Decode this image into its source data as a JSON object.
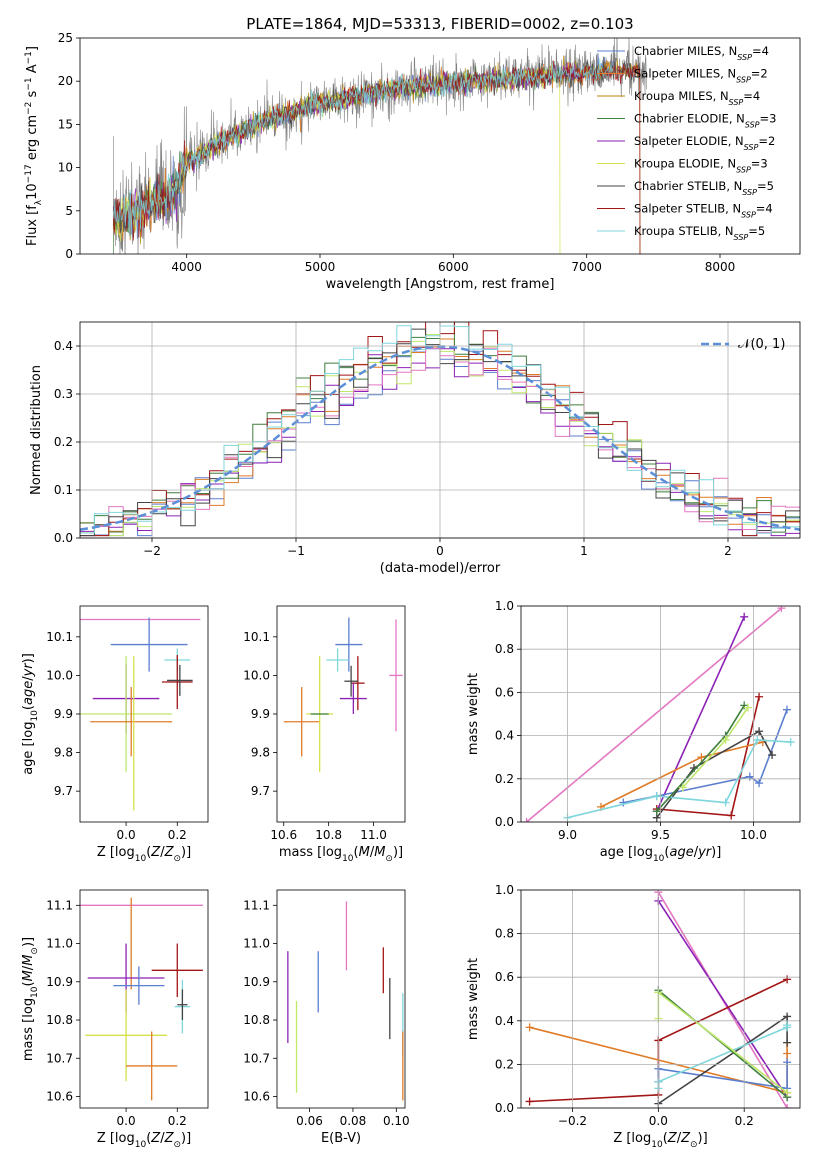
{
  "colors": {
    "Chabrier MILES": "#5b7fcf",
    "Salpeter MILES": "#e07b27",
    "Kroupa MILES": "#b8860b",
    "Chabrier ELODIE": "#3f7f3f",
    "Salpeter ELODIE": "#8b22b5",
    "Kroupa ELODIE": "#d7e04a",
    "Chabrier STELIB": "#444444",
    "Salpeter STELIB": "#a31515",
    "Kroupa STELIB": "#7fd6dc",
    "data": "#7f7f7f",
    "pink": "#e377c2",
    "green_light": "#bfe86a",
    "gauss": "#5b8fd8"
  },
  "chart_data": [
    {
      "id": "spectrum",
      "type": "line",
      "title": "PLATE=1864, MJD=53313, FIBERID=0002, z=0.103",
      "xlabel": "wavelength [Angstrom, rest frame]",
      "ylabel": "Flux [fλ10⁻¹⁷ erg cm⁻² s⁻¹ A⁻¹]",
      "xlim": [
        3200,
        8600
      ],
      "ylim": [
        0,
        25
      ],
      "xticks": [
        4000,
        5000,
        6000,
        7000,
        8000
      ],
      "yticks": [
        0,
        5,
        10,
        15,
        20,
        25
      ],
      "legend_loc": "upper right",
      "continuum_x": [
        3450,
        3700,
        3900,
        4000,
        4200,
        4400,
        4600,
        4800,
        5000,
        5200,
        5400,
        5600,
        5800,
        6000,
        6200,
        6400,
        6600,
        6800,
        7000,
        7200,
        7400
      ],
      "continuum_y": [
        4.0,
        5.5,
        7.0,
        10.5,
        12.5,
        14.0,
        15.5,
        16.5,
        17.5,
        18.0,
        18.7,
        19.3,
        19.5,
        19.8,
        20.0,
        20.3,
        20.6,
        20.8,
        21.0,
        21.2,
        21.3
      ],
      "series": [
        {
          "name": "Chabrier MILES, N_SSP=4",
          "label": "Chabrier MILES, N",
          "sub": "SSP",
          "val": "=4"
        },
        {
          "name": "Salpeter MILES, N_SSP=2",
          "label": "Salpeter MILES, N",
          "sub": "SSP",
          "val": "=2"
        },
        {
          "name": "Kroupa MILES, N_SSP=4",
          "label": "Kroupa MILES, N",
          "sub": "SSP",
          "val": "=4"
        },
        {
          "name": "Chabrier ELODIE, N_SSP=3",
          "label": "Chabrier ELODIE, N",
          "sub": "SSP",
          "val": "=3"
        },
        {
          "name": "Salpeter ELODIE, N_SSP=2",
          "label": "Salpeter ELODIE, N",
          "sub": "SSP",
          "val": "=2"
        },
        {
          "name": "Kroupa ELODIE, N_SSP=3",
          "label": "Kroupa ELODIE, N",
          "sub": "SSP",
          "val": "=3"
        },
        {
          "name": "Chabrier STELIB, N_SSP=5",
          "label": "Chabrier STELIB, N",
          "sub": "SSP",
          "val": "=5"
        },
        {
          "name": "Salpeter STELIB, N_SSP=4",
          "label": "Salpeter STELIB, N",
          "sub": "SSP",
          "val": "=4"
        },
        {
          "name": "Kroupa STELIB, N_SSP=5",
          "label": "Kroupa STELIB, N",
          "sub": "SSP",
          "val": "=5"
        }
      ]
    },
    {
      "id": "residuals",
      "type": "histogram",
      "xlabel": "(data-model)/error",
      "ylabel": "Normed distribution",
      "xlim": [
        -2.5,
        2.5
      ],
      "ylim": [
        0,
        0.45
      ],
      "xticks": [
        -2,
        -1,
        0,
        1,
        2
      ],
      "yticks": [
        0.0,
        0.1,
        0.2,
        0.3,
        0.4
      ],
      "grid": true,
      "legend": "𝒩(0, 1)",
      "gaussian": {
        "mu": 0,
        "sigma": 1
      }
    },
    {
      "id": "age-vs-Z",
      "type": "errorbar",
      "xlabel": "Z [log₁₀(Z/Z⊙)]",
      "ylabel": "age  [log₁₀(age/yr)]",
      "xlim": [
        -0.18,
        0.32
      ],
      "ylim": [
        9.62,
        10.18
      ],
      "xticks": [
        0.0,
        0.2
      ],
      "yticks": [
        9.7,
        9.8,
        9.9,
        10.0,
        10.1
      ],
      "points": [
        {
          "c": "pink",
          "x": 0.05,
          "xe": 0.24,
          "y": 10.145,
          "ye": 0.0
        },
        {
          "c": "Chabrier MILES",
          "x": 0.09,
          "xe": 0.15,
          "y": 10.08,
          "ye": 0.07
        },
        {
          "c": "Kroupa STELIB",
          "x": 0.2,
          "xe": 0.05,
          "y": 10.04,
          "ye": 0.03
        },
        {
          "c": "Salpeter STELIB",
          "x": 0.2,
          "xe": 0.06,
          "y": 9.983,
          "ye": 0.07
        },
        {
          "c": "Chabrier STELIB",
          "x": 0.21,
          "xe": 0.05,
          "y": 9.987,
          "ye": 0.04
        },
        {
          "c": "Salpeter ELODIE",
          "x": 0.0,
          "xe": 0.13,
          "y": 9.94,
          "ye": 0.09
        },
        {
          "c": "green_light",
          "x": 0.0,
          "xe": 0.18,
          "y": 9.9,
          "ye": 0.15
        },
        {
          "c": "Salpeter MILES",
          "x": 0.02,
          "xe": 0.16,
          "y": 9.88,
          "ye": 0.09
        },
        {
          "c": "Kroupa ELODIE",
          "x": 0.03,
          "xe": 0.0,
          "y": 9.85,
          "ye": 0.2
        }
      ]
    },
    {
      "id": "age-vs-mass",
      "type": "errorbar",
      "xlabel": "mass [log₁₀(M/M⊙)]",
      "xlim": [
        10.57,
        11.14
      ],
      "ylim": [
        9.62,
        10.18
      ],
      "xticks": [
        10.6,
        10.8,
        11.0
      ],
      "yticks": [
        9.7,
        9.8,
        9.9,
        10.0,
        10.1
      ],
      "points": [
        {
          "c": "pink",
          "x": 11.1,
          "xe": 0.03,
          "y": 10.0,
          "ye": 0.145
        },
        {
          "c": "Chabrier MILES",
          "x": 10.89,
          "xe": 0.06,
          "y": 10.08,
          "ye": 0.07
        },
        {
          "c": "Kroupa STELIB",
          "x": 10.84,
          "xe": 0.05,
          "y": 10.04,
          "ye": 0.03
        },
        {
          "c": "Salpeter STELIB",
          "x": 10.93,
          "xe": 0.03,
          "y": 9.98,
          "ye": 0.07
        },
        {
          "c": "Chabrier STELIB",
          "x": 10.9,
          "xe": 0.03,
          "y": 9.985,
          "ye": 0.04
        },
        {
          "c": "Salpeter ELODIE",
          "x": 10.91,
          "xe": 0.06,
          "y": 9.94,
          "ye": 0.04
        },
        {
          "c": "Salpeter MILES",
          "x": 10.68,
          "xe": 0.08,
          "y": 9.88,
          "ye": 0.09
        },
        {
          "c": "Kroupa ELODIE",
          "x": 10.76,
          "xe": 0.06,
          "y": 9.9,
          "ye": 0.15
        },
        {
          "c": "Chabrier ELODIE",
          "x": 10.76,
          "xe": 0.04,
          "y": 9.9,
          "ye": 0.0
        }
      ]
    },
    {
      "id": "weight-vs-age",
      "type": "line",
      "xlabel": "age  [log₁₀(age/yr)]",
      "ylabel": "mass weight",
      "xlim": [
        8.75,
        10.25
      ],
      "ylim": [
        0,
        1
      ],
      "xticks": [
        9.0,
        9.5,
        10.0
      ],
      "yticks": [
        0.0,
        0.2,
        0.4,
        0.6,
        0.8,
        1.0
      ],
      "grid": true,
      "series": [
        {
          "c": "pink",
          "x": [
            8.78,
            10.15
          ],
          "y": [
            0.0,
            0.99
          ]
        },
        {
          "c": "Salpeter ELODIE",
          "x": [
            9.48,
            9.95
          ],
          "y": [
            0.05,
            0.95
          ]
        },
        {
          "c": "Salpeter STELIB",
          "x": [
            9.48,
            9.88,
            10.03
          ],
          "y": [
            0.06,
            0.03,
            0.58
          ]
        },
        {
          "c": "Salpeter MILES",
          "x": [
            9.18,
            9.72,
            10.05
          ],
          "y": [
            0.07,
            0.3,
            0.37
          ]
        },
        {
          "c": "Chabrier MILES",
          "x": [
            9.3,
            9.48,
            9.98,
            10.03,
            10.18
          ],
          "y": [
            0.09,
            0.12,
            0.21,
            0.18,
            0.52
          ]
        },
        {
          "c": "Chabrier STELIB",
          "x": [
            9.48,
            9.68,
            10.03,
            10.1
          ],
          "y": [
            0.02,
            0.25,
            0.42,
            0.31
          ]
        },
        {
          "c": "Kroupa STELIB",
          "x": [
            9.0,
            9.48,
            9.85,
            10.02,
            10.2
          ],
          "y": [
            0.02,
            0.12,
            0.09,
            0.38,
            0.37
          ]
        },
        {
          "c": "Chabrier ELODIE",
          "x": [
            9.48,
            9.85,
            9.95
          ],
          "y": [
            0.05,
            0.4,
            0.54
          ]
        },
        {
          "c": "green_light",
          "x": [
            9.62,
            9.85,
            9.97
          ],
          "y": [
            0.16,
            0.38,
            0.53
          ]
        }
      ]
    },
    {
      "id": "mass-vs-Z",
      "type": "errorbar",
      "xlabel": "Z [log₁₀(Z/Z⊙)]",
      "ylabel": "mass [log₁₀(M/M⊙)]",
      "xlim": [
        -0.18,
        0.32
      ],
      "ylim": [
        10.57,
        11.14
      ],
      "xticks": [
        0.0,
        0.2
      ],
      "yticks": [
        10.6,
        10.7,
        10.8,
        10.9,
        11.0,
        11.1
      ],
      "points": [
        {
          "c": "pink",
          "x": 0.06,
          "xe": 0.24,
          "y": 11.1,
          "ye": 0.0
        },
        {
          "c": "Salpeter MILES",
          "x": 0.02,
          "xe": 0.0,
          "y": 11.0,
          "ye": 0.12
        },
        {
          "c": "Salpeter STELIB",
          "x": 0.2,
          "xe": 0.1,
          "y": 10.93,
          "ye": 0.07
        },
        {
          "c": "Salpeter ELODIE",
          "x": 0.0,
          "xe": 0.15,
          "y": 10.91,
          "ye": 0.09
        },
        {
          "c": "Chabrier MILES",
          "x": 0.05,
          "xe": 0.1,
          "y": 10.89,
          "ye": 0.05
        },
        {
          "c": "Kroupa STELIB",
          "x": 0.22,
          "xe": 0.03,
          "y": 10.835,
          "ye": 0.07
        },
        {
          "c": "Chabrier STELIB",
          "x": 0.22,
          "xe": 0.02,
          "y": 10.84,
          "ye": 0.04
        },
        {
          "c": "Kroupa ELODIE",
          "x": 0.0,
          "xe": 0.16,
          "y": 10.76,
          "ye": 0.12
        },
        {
          "c": "Salpeter MILES",
          "x": 0.1,
          "xe": 0.1,
          "y": 10.68,
          "ye": 0.09
        }
      ]
    },
    {
      "id": "mass-vs-EBV",
      "type": "errorbar",
      "xlabel": "E(B-V)",
      "xlim": [
        0.045,
        0.104
      ],
      "ylim": [
        10.57,
        11.14
      ],
      "xticks": [
        0.06,
        0.08,
        0.1
      ],
      "yticks": [
        10.6,
        10.7,
        10.8,
        10.9,
        11.0,
        11.1
      ],
      "points": [
        {
          "c": "Salpeter ELODIE",
          "x": 0.05,
          "xe": 0.0,
          "y": 10.86,
          "ye": 0.12
        },
        {
          "c": "green_light",
          "x": 0.054,
          "xe": 0.0,
          "y": 10.73,
          "ye": 0.12
        },
        {
          "c": "Chabrier MILES",
          "x": 0.064,
          "xe": 0.0,
          "y": 10.9,
          "ye": 0.08
        },
        {
          "c": "pink",
          "x": 0.077,
          "xe": 0.0,
          "y": 11.02,
          "ye": 0.09
        },
        {
          "c": "Salpeter STELIB",
          "x": 0.094,
          "xe": 0.0,
          "y": 10.93,
          "ye": 0.06
        },
        {
          "c": "Chabrier STELIB",
          "x": 0.097,
          "xe": 0.0,
          "y": 10.83,
          "ye": 0.08
        },
        {
          "c": "Kroupa STELIB",
          "x": 0.103,
          "xe": 0.0,
          "y": 10.79,
          "ye": 0.08
        },
        {
          "c": "Salpeter MILES",
          "x": 0.103,
          "xe": 0.0,
          "y": 10.68,
          "ye": 0.09
        }
      ]
    },
    {
      "id": "weight-vs-Z",
      "type": "line",
      "xlabel": "Z [log₁₀(Z/Z⊙)]",
      "ylabel": "mass weight",
      "xlim": [
        -0.32,
        0.33
      ],
      "ylim": [
        0,
        1
      ],
      "xticks": [
        -0.2,
        0.0,
        0.2
      ],
      "yticks": [
        0.0,
        0.2,
        0.4,
        0.6,
        0.8,
        1.0
      ],
      "grid": true,
      "series": [
        {
          "c": "pink",
          "x": [
            0.0,
            0.3
          ],
          "y": [
            0.99,
            0.0
          ]
        },
        {
          "c": "Salpeter ELODIE",
          "x": [
            0.0,
            0.3
          ],
          "y": [
            0.95,
            0.05
          ]
        },
        {
          "c": "Salpeter STELIB",
          "x": [
            -0.3,
            0.0,
            0.0,
            0.3
          ],
          "y": [
            0.03,
            0.06,
            0.31,
            0.59
          ]
        },
        {
          "c": "Salpeter MILES",
          "x": [
            -0.3,
            0.3,
            0.3,
            0.3
          ],
          "y": [
            0.37,
            0.07,
            0.25,
            0.3
          ]
        },
        {
          "c": "Chabrier MILES",
          "x": [
            0.0,
            0.0,
            0.3,
            0.3
          ],
          "y": [
            0.12,
            0.18,
            0.09,
            0.21
          ]
        },
        {
          "c": "Chabrier STELIB",
          "x": [
            0.0,
            0.3,
            0.3
          ],
          "y": [
            0.02,
            0.42,
            0.3
          ]
        },
        {
          "c": "Kroupa STELIB",
          "x": [
            0.0,
            0.0,
            0.3,
            0.3
          ],
          "y": [
            0.09,
            0.12,
            0.37,
            0.38
          ]
        },
        {
          "c": "Chabrier ELODIE",
          "x": [
            0.0,
            0.3
          ],
          "y": [
            0.54,
            0.05
          ]
        },
        {
          "c": "green_light",
          "x": [
            0.0,
            0.0,
            0.3
          ],
          "y": [
            0.41,
            0.53,
            0.07
          ]
        }
      ]
    }
  ]
}
